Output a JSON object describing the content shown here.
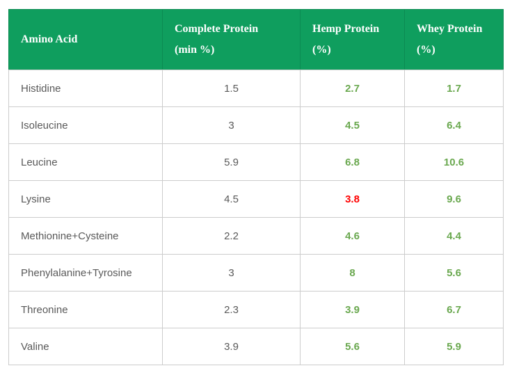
{
  "colors": {
    "header_background": "#0f9e5e",
    "header_text": "#ffffff",
    "header_divider": "#0c8a52",
    "body_text": "#595959",
    "value_green": "#6aa84f",
    "value_red": "#ff0000",
    "border": "#cccccc"
  },
  "table": {
    "columns": [
      {
        "label": "Amino Acid"
      },
      {
        "label": "Complete Protein\n(min %)"
      },
      {
        "label": "Hemp Protein\n(%)"
      },
      {
        "label": "Whey Protein\n(%)"
      }
    ],
    "rows": [
      {
        "amino_acid": "Histidine",
        "complete": "1.5",
        "hemp": "2.7",
        "whey": "1.7"
      },
      {
        "amino_acid": "Isoleucine",
        "complete": "3",
        "hemp": "4.5",
        "whey": "6.4"
      },
      {
        "amino_acid": "Leucine",
        "complete": "5.9",
        "hemp": "6.8",
        "whey": "10.6"
      },
      {
        "amino_acid": "Lysine",
        "complete": "4.5",
        "hemp": "3.8",
        "whey": "9.6"
      },
      {
        "amino_acid": "Methionine+Cysteine",
        "complete": "2.2",
        "hemp": "4.6",
        "whey": "4.4"
      },
      {
        "amino_acid": "Phenylalanine+Tyrosine",
        "complete": "3",
        "hemp": "8",
        "whey": "5.6"
      },
      {
        "amino_acid": "Threonine",
        "complete": "2.3",
        "hemp": "3.9",
        "whey": "6.7"
      },
      {
        "amino_acid": "Valine",
        "complete": "3.9",
        "hemp": "5.6",
        "whey": "5.9"
      }
    ]
  }
}
